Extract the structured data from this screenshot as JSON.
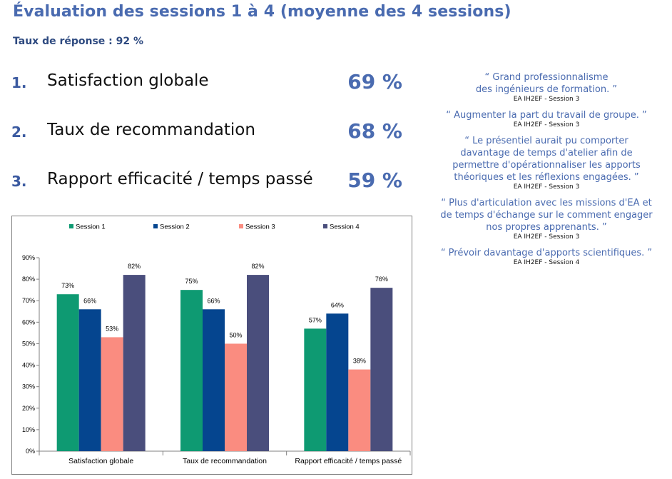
{
  "header": {
    "title": "Évaluation des sessions 1 à 4 (moyenne des 4 sessions)",
    "response_rate": "Taux de réponse : 92 %"
  },
  "metrics": [
    {
      "number": "1.",
      "label": "Satisfaction globale",
      "value": "69 %"
    },
    {
      "number": "2.",
      "label": "Taux de recommandation",
      "value": "68 %"
    },
    {
      "number": "3.",
      "label": "Rapport efficacité / temps passé",
      "value": "59 %"
    }
  ],
  "quotes": [
    {
      "text": "“ Grand professionnalisme\ndes ingénieurs de formation. ”",
      "source": "EA IH2EF - Session 3"
    },
    {
      "text": "“ Augmenter la part du travail de groupe. ”",
      "source": "EA IH2EF - Session 3"
    },
    {
      "text": "“ Le présentiel aurait pu comporter\ndavantage de temps d'atelier afin de\npermettre d'opérationnaliser les apports\nthéoriques et les réflexions engagées. ”",
      "source": "EA IH2EF - Session 3"
    },
    {
      "text": "“ Plus d'articulation avec les missions d'EA et\nde temps d'échange sur le comment engager\nnos propres apprenants. ”",
      "source": "EA IH2EF - Session 3"
    },
    {
      "text": "“ Prévoir davantage d'apports scientifiques. ”",
      "source": "EA IH2EF - Session 4"
    }
  ],
  "chart_data": {
    "type": "bar",
    "categories": [
      "Satisfaction globale",
      "Taux de recommandation",
      "Rapport efficacité / temps passé"
    ],
    "series": [
      {
        "name": "Session 1",
        "color": "#0e9a72",
        "values": [
          73,
          75,
          57
        ]
      },
      {
        "name": "Session 2",
        "color": "#05458f",
        "values": [
          66,
          66,
          64
        ]
      },
      {
        "name": "Session 3",
        "color": "#fa8c80",
        "values": [
          53,
          50,
          38
        ]
      },
      {
        "name": "Session 4",
        "color": "#4a4e7c",
        "values": [
          82,
          82,
          76
        ]
      }
    ],
    "ylim": [
      0,
      90
    ],
    "yticks": [
      0,
      10,
      20,
      30,
      40,
      50,
      60,
      70,
      80,
      90
    ],
    "ytick_labels": [
      "0%",
      "10%",
      "20%",
      "30%",
      "40%",
      "50%",
      "60%",
      "70%",
      "80%",
      "90%"
    ],
    "value_suffix": "%",
    "legend_position": "top",
    "grid": false
  }
}
